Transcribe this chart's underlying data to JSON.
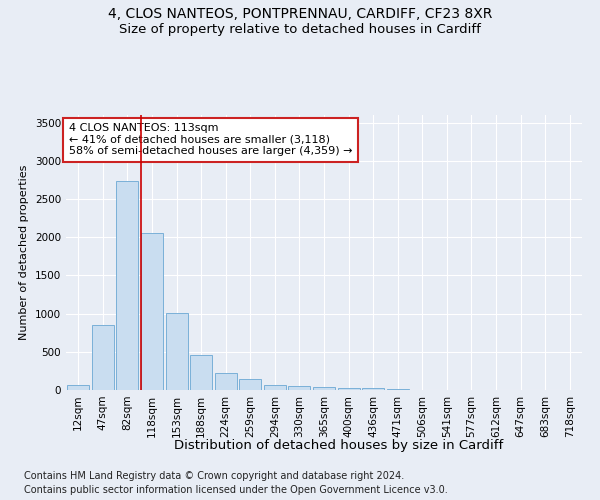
{
  "title1": "4, CLOS NANTEOS, PONTPRENNAU, CARDIFF, CF23 8XR",
  "title2": "Size of property relative to detached houses in Cardiff",
  "xlabel": "Distribution of detached houses by size in Cardiff",
  "ylabel": "Number of detached properties",
  "categories": [
    "12sqm",
    "47sqm",
    "82sqm",
    "118sqm",
    "153sqm",
    "188sqm",
    "224sqm",
    "259sqm",
    "294sqm",
    "330sqm",
    "365sqm",
    "400sqm",
    "436sqm",
    "471sqm",
    "506sqm",
    "541sqm",
    "577sqm",
    "612sqm",
    "647sqm",
    "683sqm",
    "718sqm"
  ],
  "values": [
    60,
    850,
    2730,
    2060,
    1010,
    455,
    225,
    145,
    65,
    50,
    40,
    30,
    25,
    15,
    5,
    3,
    2,
    1,
    1,
    1,
    0
  ],
  "bar_color": "#c9ddf0",
  "bar_edge_color": "#7ab0d8",
  "vline_color": "#cc0000",
  "annotation_line1": "4 CLOS NANTEOS: 113sqm",
  "annotation_line2": "← 41% of detached houses are smaller (3,118)",
  "annotation_line3": "58% of semi-detached houses are larger (4,359) →",
  "annotation_box_facecolor": "#ffffff",
  "annotation_box_edgecolor": "#cc2222",
  "ylim": [
    0,
    3600
  ],
  "yticks": [
    0,
    500,
    1000,
    1500,
    2000,
    2500,
    3000,
    3500
  ],
  "footnote1": "Contains HM Land Registry data © Crown copyright and database right 2024.",
  "footnote2": "Contains public sector information licensed under the Open Government Licence v3.0.",
  "background_color": "#e8edf5",
  "plot_background_color": "#e8edf5",
  "grid_color": "#ffffff",
  "title1_fontsize": 10,
  "title2_fontsize": 9.5,
  "xlabel_fontsize": 9.5,
  "ylabel_fontsize": 8,
  "tick_fontsize": 7.5,
  "annotation_fontsize": 8,
  "footnote_fontsize": 7
}
